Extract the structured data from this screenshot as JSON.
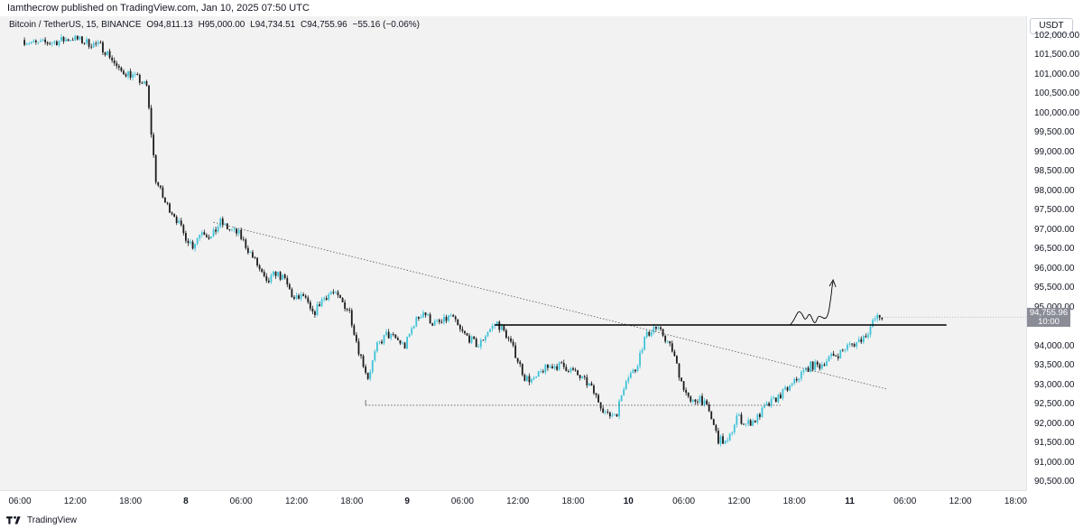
{
  "header": {
    "publish_info": "Iamthecrow published on TradingView.com, Jan 10, 2025 07:50 UTC"
  },
  "legend": {
    "symbol": "Bitcoin / TetherUS, 15, BINANCE",
    "open": "O94,811.13",
    "high": "H95,000.00",
    "low": "L94,734.51",
    "close": "C94,755.96",
    "change": "−55.16 (−0.06%)"
  },
  "price_axis": {
    "currency": "USDT",
    "ticks": [
      "102,000.00",
      "101,500.00",
      "101,000.00",
      "100,500.00",
      "100,000.00",
      "99,500.00",
      "99,000.00",
      "98,500.00",
      "98,000.00",
      "97,500.00",
      "97,000.00",
      "96,500.00",
      "96,000.00",
      "95,500.00",
      "95,000.00",
      "94,000.00",
      "93,500.00",
      "93,000.00",
      "92,500.00",
      "92,000.00",
      "91,500.00",
      "91,000.00",
      "90,500.00"
    ],
    "current_price": "94,755.96",
    "countdown": "10:00"
  },
  "time_axis": {
    "ticks": [
      {
        "label": "06:00",
        "bold": false
      },
      {
        "label": "12:00",
        "bold": false
      },
      {
        "label": "18:00",
        "bold": false
      },
      {
        "label": "8",
        "bold": true
      },
      {
        "label": "06:00",
        "bold": false
      },
      {
        "label": "12:00",
        "bold": false
      },
      {
        "label": "18:00",
        "bold": false
      },
      {
        "label": "9",
        "bold": true
      },
      {
        "label": "06:00",
        "bold": false
      },
      {
        "label": "12:00",
        "bold": false
      },
      {
        "label": "18:00",
        "bold": false
      },
      {
        "label": "10",
        "bold": true
      },
      {
        "label": "06:00",
        "bold": false
      },
      {
        "label": "12:00",
        "bold": false
      },
      {
        "label": "18:00",
        "bold": false
      },
      {
        "label": "11",
        "bold": true
      },
      {
        "label": "06:00",
        "bold": false
      },
      {
        "label": "12:00",
        "bold": false
      },
      {
        "label": "18:00",
        "bold": false
      }
    ]
  },
  "footer": {
    "brand": "TradingView"
  },
  "colors": {
    "up": "#3ec3d8",
    "down": "#1b1b1b",
    "background": "#f2f2f2",
    "line": "#000000"
  },
  "chart_data": {
    "type": "candlestick",
    "symbol": "BTCUSDT",
    "interval": "15",
    "ylim": [
      90200,
      102100
    ],
    "price_path": [
      [
        6.5,
        101900
      ],
      [
        8,
        101800
      ],
      [
        10,
        101850
      ],
      [
        12,
        101950
      ],
      [
        14,
        101800
      ],
      [
        15,
        101750
      ],
      [
        16,
        101500
      ],
      [
        17,
        101100
      ],
      [
        18,
        101050
      ],
      [
        19,
        100900
      ],
      [
        20,
        100700
      ],
      [
        20.5,
        99500
      ],
      [
        21,
        98300
      ],
      [
        22,
        97700
      ],
      [
        23,
        97400
      ],
      [
        24,
        96900
      ],
      [
        25,
        96600
      ],
      [
        26,
        97000
      ],
      [
        27,
        96800
      ],
      [
        28,
        97200
      ],
      [
        29,
        97000
      ],
      [
        30,
        96900
      ],
      [
        31,
        96500
      ],
      [
        32,
        96100
      ],
      [
        33,
        95600
      ],
      [
        34,
        95900
      ],
      [
        35,
        95700
      ],
      [
        36,
        95200
      ],
      [
        37,
        95300
      ],
      [
        38,
        94800
      ],
      [
        39,
        95200
      ],
      [
        40,
        95400
      ],
      [
        41,
        95200
      ],
      [
        42,
        94900
      ],
      [
        43,
        93900
      ],
      [
        44,
        93200
      ],
      [
        45,
        94000
      ],
      [
        46,
        94300
      ],
      [
        47,
        94200
      ],
      [
        48,
        94000
      ],
      [
        49,
        94600
      ],
      [
        50,
        94900
      ],
      [
        51,
        94600
      ],
      [
        52,
        94600
      ],
      [
        53,
        94800
      ],
      [
        54,
        94400
      ],
      [
        55,
        94200
      ],
      [
        56,
        94000
      ],
      [
        57,
        94400
      ],
      [
        58,
        94600
      ],
      [
        59,
        94300
      ],
      [
        60,
        93800
      ],
      [
        61,
        93200
      ],
      [
        62,
        93100
      ],
      [
        63,
        93400
      ],
      [
        64,
        93500
      ],
      [
        65,
        93500
      ],
      [
        66,
        93400
      ],
      [
        67,
        93200
      ],
      [
        68,
        93000
      ],
      [
        69,
        92600
      ],
      [
        70,
        92200
      ],
      [
        71,
        92300
      ],
      [
        72,
        93200
      ],
      [
        73,
        93400
      ],
      [
        74,
        94200
      ],
      [
        75,
        94500
      ],
      [
        76,
        94300
      ],
      [
        77,
        93900
      ],
      [
        78,
        93100
      ],
      [
        79,
        92500
      ],
      [
        80,
        92700
      ],
      [
        81,
        92300
      ],
      [
        82,
        91600
      ],
      [
        83,
        91500
      ],
      [
        84,
        92200
      ],
      [
        85,
        92000
      ],
      [
        86,
        92100
      ],
      [
        87,
        92400
      ],
      [
        88,
        92600
      ],
      [
        89,
        92800
      ],
      [
        90,
        93000
      ],
      [
        91,
        93300
      ],
      [
        92,
        93500
      ],
      [
        93,
        93500
      ],
      [
        94,
        93700
      ],
      [
        95,
        93800
      ],
      [
        96,
        94000
      ],
      [
        97,
        94100
      ],
      [
        98,
        94300
      ],
      [
        99,
        94700
      ],
      [
        99.5,
        94760
      ]
    ],
    "drawings": {
      "horizontal_level": 94550,
      "support_dotted": 92480,
      "trendline_from": [
        27,
        97200
      ],
      "trendline_to": [
        100,
        92900
      ]
    }
  }
}
